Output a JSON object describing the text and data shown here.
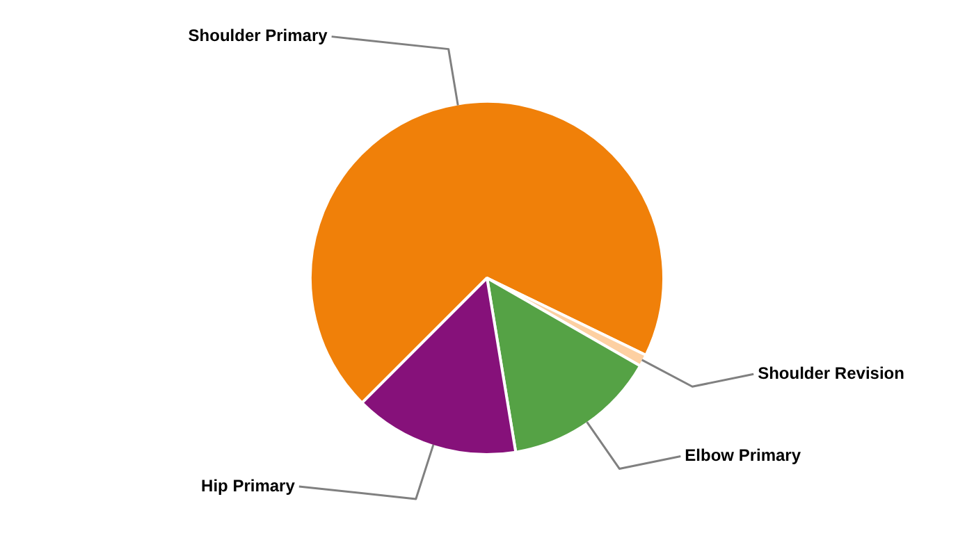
{
  "chart_data": {
    "type": "pie",
    "categories": [
      "Shoulder Primary",
      "Shoulder Revision",
      "Elbow Primary",
      "Hip Primary"
    ],
    "values": [
      69.7,
      1.1,
      14.1,
      15.1
    ],
    "colors": [
      "#f08009",
      "#fdd0a2",
      "#55a245",
      "#86117a"
    ]
  }
}
